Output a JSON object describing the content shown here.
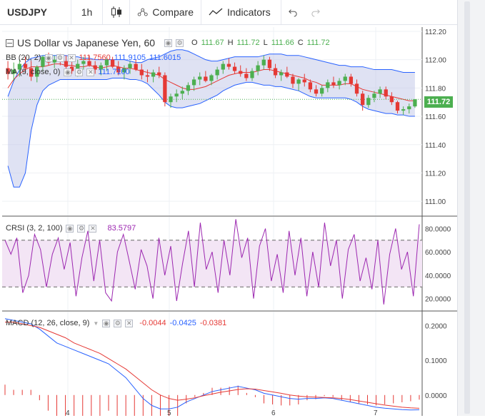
{
  "toolbar": {
    "symbol": "USDJPY",
    "interval": "1h",
    "compare_label": "Compare",
    "indicators_label": "Indicators"
  },
  "main_legend": {
    "title": "US Dollar vs Japanese Yen, 60",
    "open_label": "O",
    "open": "111.67",
    "high_label": "H",
    "high": "111.72",
    "low_label": "L",
    "low": "111.66",
    "close_label": "C",
    "close": "111.72"
  },
  "bb_legend": {
    "name": "BB (20, 2)",
    "v1": "111.7560",
    "v2": "111.9105",
    "v3": "111.6015"
  },
  "ma_legend": {
    "name": "MA (9, close, 0)",
    "v1": "111.7100"
  },
  "crsi_legend": {
    "name": "CRSI (3, 2, 100)",
    "v1": "83.5797"
  },
  "macd_legend": {
    "name": "MACD (12, 26, close, 9)",
    "v1": "-0.0044",
    "v2": "-0.0425",
    "v3": "-0.0381"
  },
  "last_price": "111.72",
  "price_axis": [
    "112.20",
    "112.00",
    "111.80",
    "111.60",
    "111.40",
    "111.20",
    "111.00"
  ],
  "crsi_axis": [
    "80.0000",
    "60.0000",
    "40.0000",
    "20.0000"
  ],
  "macd_axis": [
    "0.2000",
    "0.1000",
    "0.0000"
  ],
  "time_axis": [
    "4",
    "5",
    "6",
    "7"
  ],
  "colors": {
    "up": "#4caf50",
    "down": "#e53935",
    "bb_band": "#2962ff",
    "bb_fill": "#c5cae9",
    "ma": "#e53935",
    "crsi": "#9c27b0",
    "macd": "#2962ff",
    "signal": "#e53935",
    "last": "#4caf50"
  },
  "chart_data": [
    {
      "type": "candlestick",
      "title": "US Dollar vs Japanese Yen, 60",
      "ylim": [
        110.9,
        112.23
      ],
      "candles": [
        [
          111.94,
          111.99,
          111.86,
          111.9
        ],
        [
          111.9,
          111.98,
          111.85,
          111.93
        ],
        [
          111.93,
          112.0,
          111.88,
          111.97
        ],
        [
          111.97,
          112.02,
          111.9,
          111.94
        ],
        [
          111.94,
          111.99,
          111.85,
          111.88
        ],
        [
          111.88,
          111.96,
          111.84,
          111.95
        ],
        [
          111.95,
          112.03,
          111.92,
          112.02
        ],
        [
          112.02,
          112.05,
          111.96,
          111.98
        ],
        [
          111.98,
          112.03,
          111.94,
          112.0
        ],
        [
          112.0,
          112.04,
          111.96,
          111.99
        ],
        [
          111.99,
          112.03,
          111.93,
          111.95
        ],
        [
          111.95,
          111.99,
          111.9,
          111.92
        ],
        [
          111.92,
          112.0,
          111.88,
          111.97
        ],
        [
          111.97,
          112.02,
          111.93,
          111.99
        ],
        [
          111.99,
          112.03,
          111.95,
          111.96
        ],
        [
          111.96,
          111.99,
          111.9,
          111.93
        ],
        [
          111.93,
          111.98,
          111.89,
          111.96
        ],
        [
          111.96,
          112.02,
          111.92,
          112.0
        ],
        [
          112.0,
          112.02,
          111.94,
          111.95
        ],
        [
          111.95,
          111.99,
          111.89,
          111.91
        ],
        [
          111.91,
          111.96,
          111.86,
          111.94
        ],
        [
          111.94,
          111.99,
          111.9,
          111.97
        ],
        [
          111.97,
          112.0,
          111.92,
          111.93
        ],
        [
          111.93,
          111.97,
          111.86,
          111.89
        ],
        [
          111.89,
          111.93,
          111.84,
          111.88
        ],
        [
          111.88,
          111.93,
          111.84,
          111.91
        ],
        [
          111.91,
          111.95,
          111.87,
          111.89
        ],
        [
          111.89,
          111.91,
          111.67,
          111.7
        ],
        [
          111.7,
          111.76,
          111.66,
          111.74
        ],
        [
          111.74,
          111.79,
          111.7,
          111.76
        ],
        [
          111.76,
          111.81,
          111.72,
          111.78
        ],
        [
          111.78,
          111.84,
          111.75,
          111.82
        ],
        [
          111.82,
          111.88,
          111.78,
          111.86
        ],
        [
          111.86,
          111.91,
          111.82,
          111.88
        ],
        [
          111.88,
          111.92,
          111.84,
          111.85
        ],
        [
          111.85,
          111.9,
          111.82,
          111.89
        ],
        [
          111.89,
          111.95,
          111.86,
          111.93
        ],
        [
          111.93,
          111.99,
          111.9,
          111.97
        ],
        [
          111.97,
          112.01,
          111.93,
          111.95
        ],
        [
          111.95,
          111.98,
          111.9,
          111.92
        ],
        [
          111.92,
          111.96,
          111.88,
          111.9
        ],
        [
          111.9,
          111.94,
          111.85,
          111.87
        ],
        [
          111.87,
          111.94,
          111.85,
          111.92
        ],
        [
          111.92,
          111.99,
          111.89,
          111.96
        ],
        [
          111.96,
          112.03,
          111.93,
          112.0
        ],
        [
          112.0,
          112.02,
          111.92,
          111.94
        ],
        [
          111.94,
          111.97,
          111.87,
          111.89
        ],
        [
          111.89,
          111.93,
          111.85,
          111.91
        ],
        [
          111.91,
          111.95,
          111.87,
          111.88
        ],
        [
          111.88,
          111.9,
          111.8,
          111.83
        ],
        [
          111.83,
          111.87,
          111.78,
          111.86
        ],
        [
          111.86,
          111.9,
          111.81,
          111.84
        ],
        [
          111.84,
          111.86,
          111.77,
          111.79
        ],
        [
          111.79,
          111.82,
          111.74,
          111.76
        ],
        [
          111.76,
          111.82,
          111.74,
          111.8
        ],
        [
          111.8,
          111.86,
          111.77,
          111.84
        ],
        [
          111.84,
          111.88,
          111.8,
          111.82
        ],
        [
          111.82,
          111.87,
          111.79,
          111.85
        ],
        [
          111.85,
          111.9,
          111.82,
          111.88
        ],
        [
          111.88,
          111.9,
          111.81,
          111.83
        ],
        [
          111.83,
          111.86,
          111.74,
          111.76
        ],
        [
          111.76,
          111.78,
          111.64,
          111.68
        ],
        [
          111.68,
          111.75,
          111.66,
          111.73
        ],
        [
          111.73,
          111.78,
          111.7,
          111.76
        ],
        [
          111.76,
          111.81,
          111.73,
          111.79
        ],
        [
          111.79,
          111.81,
          111.72,
          111.74
        ],
        [
          111.74,
          111.77,
          111.68,
          111.7
        ],
        [
          111.7,
          111.71,
          111.62,
          111.64
        ],
        [
          111.64,
          111.67,
          111.61,
          111.65
        ],
        [
          111.65,
          111.69,
          111.62,
          111.67
        ],
        [
          111.67,
          111.72,
          111.66,
          111.72
        ]
      ],
      "ma": [
        111.8,
        111.86,
        111.9,
        111.93,
        111.95,
        111.95,
        111.95,
        111.96,
        111.97,
        111.97,
        111.96,
        111.96,
        111.95,
        111.95,
        111.96,
        111.95,
        111.94,
        111.95,
        111.96,
        111.95,
        111.94,
        111.94,
        111.93,
        111.92,
        111.91,
        111.9,
        111.89,
        111.86,
        111.84,
        111.82,
        111.8,
        111.79,
        111.79,
        111.8,
        111.81,
        111.83,
        111.85,
        111.87,
        111.89,
        111.9,
        111.91,
        111.91,
        111.91,
        111.92,
        111.93,
        111.93,
        111.92,
        111.91,
        111.9,
        111.89,
        111.88,
        111.87,
        111.85,
        111.84,
        111.82,
        111.82,
        111.82,
        111.82,
        111.83,
        111.83,
        111.81,
        111.79,
        111.78,
        111.77,
        111.76,
        111.75,
        111.74,
        111.73,
        111.72,
        111.71,
        111.71
      ],
      "bb_upper": [
        111.74,
        111.85,
        111.93,
        111.98,
        112.01,
        112.02,
        112.03,
        112.03,
        112.03,
        112.03,
        112.03,
        112.02,
        112.02,
        112.01,
        112.01,
        112.0,
        112.0,
        112.0,
        112.0,
        112.0,
        112.0,
        111.99,
        111.98,
        111.98,
        112.0,
        112.01,
        112.02,
        112.04,
        112.06,
        112.07,
        112.07,
        112.06,
        112.04,
        112.02,
        112.0,
        111.99,
        111.99,
        112.0,
        112.01,
        112.02,
        112.02,
        112.02,
        112.02,
        112.02,
        112.03,
        112.04,
        112.04,
        112.04,
        112.03,
        112.03,
        112.03,
        112.02,
        112.01,
        112.0,
        111.99,
        111.98,
        111.97,
        111.96,
        111.96,
        111.95,
        111.95,
        111.95,
        111.94,
        111.93,
        111.93,
        111.93,
        111.93,
        111.92,
        111.91,
        111.91,
        111.91
      ],
      "bb_lower": [
        111.25,
        111.1,
        111.1,
        111.2,
        111.5,
        111.68,
        111.78,
        111.82,
        111.84,
        111.86,
        111.86,
        111.86,
        111.86,
        111.86,
        111.86,
        111.86,
        111.86,
        111.86,
        111.87,
        111.87,
        111.87,
        111.86,
        111.86,
        111.85,
        111.83,
        111.79,
        111.75,
        111.7,
        111.67,
        111.66,
        111.66,
        111.67,
        111.68,
        111.69,
        111.71,
        111.73,
        111.75,
        111.78,
        111.8,
        111.82,
        111.83,
        111.84,
        111.84,
        111.83,
        111.82,
        111.82,
        111.81,
        111.81,
        111.8,
        111.79,
        111.78,
        111.76,
        111.74,
        111.73,
        111.73,
        111.73,
        111.73,
        111.73,
        111.73,
        111.72,
        111.7,
        111.67,
        111.65,
        111.64,
        111.63,
        111.62,
        111.62,
        111.61,
        111.61,
        111.6,
        111.6
      ]
    },
    {
      "type": "line",
      "title": "CRSI (3, 2, 100)",
      "ylim": [
        10,
        90
      ],
      "upper_band": 70,
      "lower_band": 30,
      "values": [
        70,
        58,
        72,
        25,
        40,
        75,
        62,
        30,
        58,
        72,
        45,
        68,
        22,
        55,
        78,
        35,
        70,
        25,
        18,
        60,
        75,
        52,
        28,
        62,
        48,
        20,
        72,
        40,
        65,
        18,
        50,
        78,
        30,
        85,
        45,
        60,
        25,
        70,
        40,
        88,
        55,
        72,
        20,
        65,
        80,
        35,
        58,
        25,
        78,
        40,
        72,
        22,
        60,
        30,
        85,
        48,
        70,
        20,
        62,
        75,
        35,
        55,
        28,
        70,
        15,
        58,
        80,
        45,
        60,
        22,
        83.5797
      ]
    },
    {
      "type": "line",
      "title": "MACD (12, 26, close, 9)",
      "ylim": [
        -0.06,
        0.24
      ],
      "macd": [
        0.22,
        0.215,
        0.21,
        0.205,
        0.19,
        0.17,
        0.15,
        0.14,
        0.13,
        0.12,
        0.11,
        0.1,
        0.09,
        0.07,
        0.05,
        0.02,
        -0.01,
        -0.03,
        -0.04,
        -0.04,
        -0.035,
        -0.02,
        -0.01,
        0.0,
        0.01,
        0.015,
        0.02,
        0.025,
        0.02,
        0.015,
        0.005,
        0.0,
        -0.005,
        -0.01,
        -0.012,
        -0.01,
        -0.01,
        -0.008,
        -0.01,
        -0.015,
        -0.02,
        -0.025,
        -0.03,
        -0.035,
        -0.038,
        -0.04,
        -0.042,
        -0.043,
        -0.0425
      ],
      "signal": [
        0.21,
        0.21,
        0.205,
        0.2,
        0.195,
        0.185,
        0.175,
        0.165,
        0.15,
        0.14,
        0.13,
        0.12,
        0.105,
        0.09,
        0.075,
        0.055,
        0.035,
        0.015,
        0.0,
        -0.01,
        -0.015,
        -0.012,
        -0.008,
        -0.002,
        0.003,
        0.008,
        0.012,
        0.016,
        0.018,
        0.017,
        0.013,
        0.009,
        0.005,
        0.0,
        -0.003,
        -0.005,
        -0.006,
        -0.007,
        -0.008,
        -0.01,
        -0.013,
        -0.017,
        -0.021,
        -0.025,
        -0.029,
        -0.032,
        -0.035,
        -0.037,
        -0.0381
      ]
    }
  ]
}
